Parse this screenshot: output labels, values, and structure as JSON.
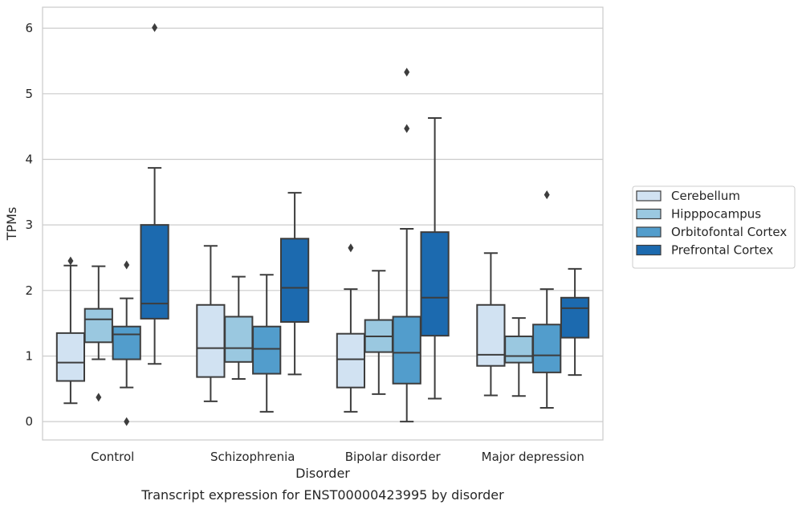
{
  "chart_data": {
    "type": "box",
    "xlabel": "Disorder",
    "ylabel": "TPMs",
    "caption": "Transcript expression for ENST00000423995 by disorder",
    "ylim": [
      -0.28,
      6.32
    ],
    "yticks": [
      0,
      1,
      2,
      3,
      4,
      5,
      6
    ],
    "grid": "horizontal",
    "legend_position": "right",
    "categories": [
      "Control",
      "Schizophrenia",
      "Bipolar disorder",
      "Major depression"
    ],
    "series": [
      {
        "name": "Cerebellum",
        "color": "#d1e2f2",
        "boxes": [
          {
            "whisker_low": 0.28,
            "q1": 0.62,
            "median": 0.9,
            "q3": 1.35,
            "whisker_high": 2.38,
            "outliers": [
              2.45
            ]
          },
          {
            "whisker_low": 0.31,
            "q1": 0.68,
            "median": 1.12,
            "q3": 1.78,
            "whisker_high": 2.68,
            "outliers": []
          },
          {
            "whisker_low": 0.15,
            "q1": 0.52,
            "median": 0.95,
            "q3": 1.34,
            "whisker_high": 2.02,
            "outliers": [
              2.65
            ]
          },
          {
            "whisker_low": 0.4,
            "q1": 0.85,
            "median": 1.02,
            "q3": 1.78,
            "whisker_high": 2.57,
            "outliers": []
          }
        ]
      },
      {
        "name": "Hipppocampus",
        "color": "#9ac8e0",
        "boxes": [
          {
            "whisker_low": 0.95,
            "q1": 1.21,
            "median": 1.56,
            "q3": 1.72,
            "whisker_high": 2.37,
            "outliers": [
              0.37
            ]
          },
          {
            "whisker_low": 0.65,
            "q1": 0.91,
            "median": 1.12,
            "q3": 1.6,
            "whisker_high": 2.21,
            "outliers": []
          },
          {
            "whisker_low": 0.42,
            "q1": 1.06,
            "median": 1.3,
            "q3": 1.55,
            "whisker_high": 2.3,
            "outliers": []
          },
          {
            "whisker_low": 0.39,
            "q1": 0.9,
            "median": 1.0,
            "q3": 1.3,
            "whisker_high": 1.58,
            "outliers": []
          }
        ]
      },
      {
        "name": "Orbitofontal Cortex",
        "color": "#529dcc",
        "boxes": [
          {
            "whisker_low": 0.52,
            "q1": 0.95,
            "median": 1.33,
            "q3": 1.45,
            "whisker_high": 1.88,
            "outliers": [
              2.39,
              0.0
            ]
          },
          {
            "whisker_low": 0.15,
            "q1": 0.73,
            "median": 1.11,
            "q3": 1.45,
            "whisker_high": 2.24,
            "outliers": []
          },
          {
            "whisker_low": 0.0,
            "q1": 0.58,
            "median": 1.05,
            "q3": 1.6,
            "whisker_high": 2.94,
            "outliers": [
              4.47,
              5.33
            ]
          },
          {
            "whisker_low": 0.21,
            "q1": 0.75,
            "median": 1.01,
            "q3": 1.48,
            "whisker_high": 2.02,
            "outliers": [
              3.46
            ]
          }
        ]
      },
      {
        "name": "Prefrontal Cortex",
        "color": "#1c6aaf",
        "boxes": [
          {
            "whisker_low": 0.88,
            "q1": 1.57,
            "median": 1.8,
            "q3": 3.0,
            "whisker_high": 3.87,
            "outliers": [
              6.01
            ]
          },
          {
            "whisker_low": 0.72,
            "q1": 1.52,
            "median": 2.04,
            "q3": 2.79,
            "whisker_high": 3.49,
            "outliers": []
          },
          {
            "whisker_low": 0.35,
            "q1": 1.31,
            "median": 1.89,
            "q3": 2.89,
            "whisker_high": 4.63,
            "outliers": []
          },
          {
            "whisker_low": 0.71,
            "q1": 1.28,
            "median": 1.73,
            "q3": 1.89,
            "whisker_high": 2.33,
            "outliers": []
          }
        ]
      }
    ]
  }
}
